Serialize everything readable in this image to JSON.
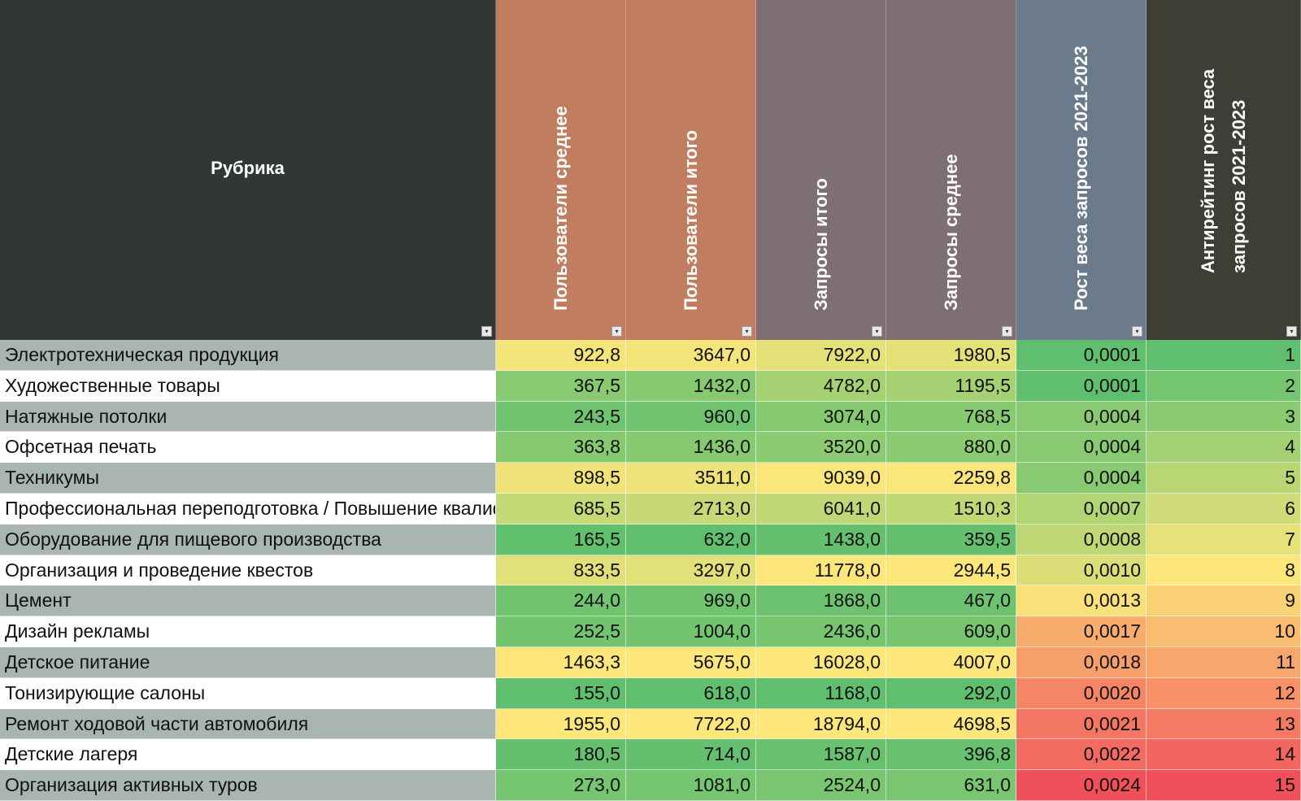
{
  "header": {
    "rubric": "Рубрика",
    "columns": [
      {
        "label": "Пользователи среднее",
        "bg": "#c07d60"
      },
      {
        "label": "Пользователи итого",
        "bg": "#c07d60"
      },
      {
        "label": "Запросы итого",
        "bg": "#7e6f73"
      },
      {
        "label": "Запросы среднее",
        "bg": "#7e6f73"
      },
      {
        "label": "Рост веса запросов 2021-2023",
        "bg": "#6b7b8c"
      },
      {
        "label": "Антирейтинг рост веса запросов 2021-2023",
        "bg": "#3e3e36"
      }
    ],
    "rubric_bg": "#313735"
  },
  "colors": {
    "name_odd_bg": "#a9b5b1",
    "name_even_bg": "#ffffff",
    "scale_low": "#5fbf6e",
    "scale_mid": "#fde77a",
    "scale_high": "#f0505a"
  },
  "rows": [
    {
      "name": "Электротехническая продукция",
      "users_avg": "922,8",
      "users_total": "3647,0",
      "req_total": "7922,0",
      "req_avg": "1980,5",
      "growth": "0,0001",
      "rank": "1"
    },
    {
      "name": "Художественные товары",
      "users_avg": "367,5",
      "users_total": "1432,0",
      "req_total": "4782,0",
      "req_avg": "1195,5",
      "growth": "0,0001",
      "rank": "2"
    },
    {
      "name": "Натяжные потолки",
      "users_avg": "243,5",
      "users_total": "960,0",
      "req_total": "3074,0",
      "req_avg": "768,5",
      "growth": "0,0004",
      "rank": "3"
    },
    {
      "name": "Офсетная печать",
      "users_avg": "363,8",
      "users_total": "1436,0",
      "req_total": "3520,0",
      "req_avg": "880,0",
      "growth": "0,0004",
      "rank": "4"
    },
    {
      "name": "Техникумы",
      "users_avg": "898,5",
      "users_total": "3511,0",
      "req_total": "9039,0",
      "req_avg": "2259,8",
      "growth": "0,0004",
      "rank": "5"
    },
    {
      "name": "Профессиональная переподготовка / Повышение квалиф",
      "users_avg": "685,5",
      "users_total": "2713,0",
      "req_total": "6041,0",
      "req_avg": "1510,3",
      "growth": "0,0007",
      "rank": "6"
    },
    {
      "name": "Оборудование для пищевого производства",
      "users_avg": "165,5",
      "users_total": "632,0",
      "req_total": "1438,0",
      "req_avg": "359,5",
      "growth": "0,0008",
      "rank": "7"
    },
    {
      "name": "Организация и проведение квестов",
      "users_avg": "833,5",
      "users_total": "3297,0",
      "req_total": "11778,0",
      "req_avg": "2944,5",
      "growth": "0,0010",
      "rank": "8"
    },
    {
      "name": "Цемент",
      "users_avg": "244,0",
      "users_total": "969,0",
      "req_total": "1868,0",
      "req_avg": "467,0",
      "growth": "0,0013",
      "rank": "9"
    },
    {
      "name": "Дизайн рекламы",
      "users_avg": "252,5",
      "users_total": "1004,0",
      "req_total": "2436,0",
      "req_avg": "609,0",
      "growth": "0,0017",
      "rank": "10"
    },
    {
      "name": "Детское питание",
      "users_avg": "1463,3",
      "users_total": "5675,0",
      "req_total": "16028,0",
      "req_avg": "4007,0",
      "growth": "0,0018",
      "rank": "11"
    },
    {
      "name": "Тонизирующие салоны",
      "users_avg": "155,0",
      "users_total": "618,0",
      "req_total": "1168,0",
      "req_avg": "292,0",
      "growth": "0,0020",
      "rank": "12"
    },
    {
      "name": "Ремонт ходовой части автомобиля",
      "users_avg": "1955,0",
      "users_total": "7722,0",
      "req_total": "18794,0",
      "req_avg": "4698,5",
      "growth": "0,0021",
      "rank": "13"
    },
    {
      "name": "Детские лагеря",
      "users_avg": "180,5",
      "users_total": "714,0",
      "req_total": "1587,0",
      "req_avg": "396,8",
      "growth": "0,0022",
      "rank": "14"
    },
    {
      "name": "Организация активных туров",
      "users_avg": "273,0",
      "users_total": "1081,0",
      "req_total": "2524,0",
      "req_avg": "631,0",
      "growth": "0,0024",
      "rank": "15"
    }
  ]
}
